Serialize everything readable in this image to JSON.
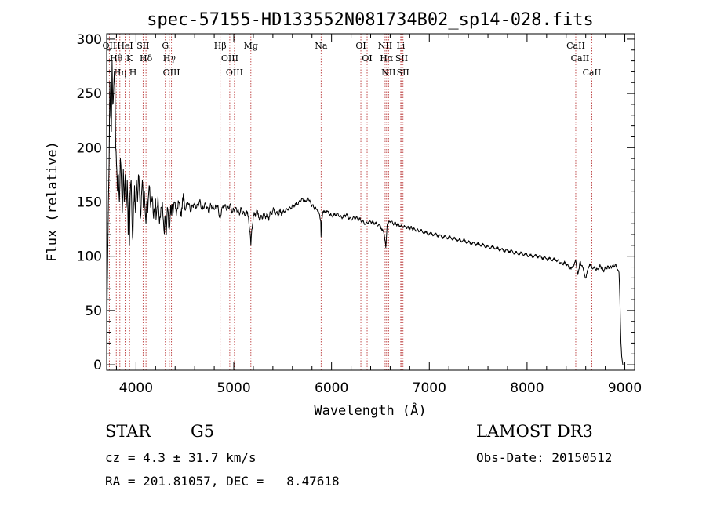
{
  "chart_data": {
    "type": "line",
    "title": "spec-57155-HD133552N081734B02_sp14-028.fits",
    "xlabel": "Wavelength (Å)",
    "ylabel": "Flux (relative)",
    "xlim": [
      3700,
      9100
    ],
    "ylim": [
      -5,
      305
    ],
    "x_ticks": [
      4000,
      5000,
      6000,
      7000,
      8000,
      9000
    ],
    "x_tick_labels": [
      "4000",
      "5000",
      "6000",
      "7000",
      "8000",
      "9000"
    ],
    "y_ticks": [
      0,
      50,
      100,
      150,
      200,
      250,
      300
    ],
    "y_tick_labels": [
      "0",
      "50",
      "100",
      "150",
      "200",
      "250",
      "300"
    ],
    "grid": false,
    "series": [
      {
        "name": "flux",
        "x": [
          3700,
          3705,
          3712,
          3718,
          3725,
          3732,
          3740,
          3748,
          3755,
          3762,
          3770,
          3778,
          3785,
          3792,
          3800,
          3810,
          3820,
          3830,
          3840,
          3850,
          3860,
          3870,
          3880,
          3890,
          3900,
          3910,
          3920,
          3930,
          3933,
          3940,
          3950,
          3960,
          3968,
          3975,
          3985,
          3995,
          4005,
          4015,
          4025,
          4035,
          4045,
          4055,
          4065,
          4075,
          4085,
          4095,
          4102,
          4110,
          4120,
          4135,
          4150,
          4165,
          4180,
          4195,
          4210,
          4225,
          4240,
          4255,
          4270,
          4285,
          4300,
          4310,
          4320,
          4330,
          4340,
          4350,
          4365,
          4380,
          4400,
          4420,
          4440,
          4460,
          4480,
          4500,
          4530,
          4560,
          4590,
          4620,
          4650,
          4680,
          4710,
          4740,
          4770,
          4800,
          4830,
          4861,
          4880,
          4900,
          4930,
          4960,
          4990,
          5020,
          5050,
          5080,
          5110,
          5140,
          5167,
          5175,
          5184,
          5200,
          5230,
          5270,
          5300,
          5350,
          5400,
          5450,
          5500,
          5550,
          5600,
          5650,
          5700,
          5730,
          5760,
          5790,
          5820,
          5850,
          5870,
          5890,
          5893,
          5896,
          5910,
          5950,
          6000,
          6050,
          6100,
          6150,
          6200,
          6250,
          6300,
          6350,
          6400,
          6450,
          6500,
          6540,
          6555,
          6563,
          6570,
          6600,
          6650,
          6700,
          6750,
          6800,
          6850,
          6900,
          7000,
          7100,
          7200,
          7300,
          7400,
          7500,
          7600,
          7700,
          7800,
          7900,
          8000,
          8100,
          8200,
          8300,
          8350,
          8400,
          8450,
          8498,
          8520,
          8542,
          8560,
          8600,
          8640,
          8662,
          8690,
          8720,
          8750,
          8780,
          8810,
          8840,
          8870,
          8900,
          8925,
          8940,
          8950,
          8960,
          8968,
          8975,
          8980
        ],
        "y": [
          0,
          60,
          110,
          150,
          185,
          260,
          230,
          215,
          280,
          240,
          250,
          270,
          255,
          200,
          185,
          160,
          175,
          150,
          190,
          170,
          140,
          180,
          150,
          175,
          145,
          170,
          120,
          160,
          110,
          155,
          170,
          130,
          115,
          150,
          165,
          140,
          170,
          150,
          175,
          160,
          135,
          155,
          170,
          145,
          160,
          140,
          130,
          150,
          140,
          165,
          145,
          155,
          135,
          148,
          140,
          155,
          130,
          145,
          150,
          125,
          135,
          120,
          145,
          140,
          125,
          138,
          147,
          140,
          150,
          143,
          149,
          141,
          151,
          143,
          150,
          142,
          148,
          145,
          151,
          143,
          149,
          141,
          147,
          143,
          147,
          135,
          145,
          148,
          143,
          147,
          141,
          145,
          140,
          143,
          138,
          141,
          122,
          110,
          125,
          137,
          140,
          134,
          138,
          136,
          142,
          139,
          141,
          143,
          146,
          148,
          153,
          150,
          154,
          148,
          145,
          143,
          140,
          132,
          118,
          130,
          140,
          142,
          137,
          139,
          136,
          138,
          134,
          136,
          133,
          130,
          132,
          130,
          128,
          120,
          108,
          120,
          130,
          132,
          130,
          128,
          127,
          126,
          125,
          123,
          121,
          119,
          117,
          115,
          113,
          111,
          109,
          107,
          105,
          103,
          101,
          100,
          98,
          96,
          94,
          93,
          88,
          96,
          83,
          95,
          91,
          80,
          93,
          90,
          89,
          88,
          91,
          87,
          89,
          90,
          90,
          92,
          88,
          85,
          60,
          20,
          8,
          3,
          0
        ]
      }
    ],
    "annotations": [
      {
        "wl": 3727,
        "label": "OII"
      },
      {
        "wl": 3798,
        "label": "Hθ"
      },
      {
        "wl": 3835,
        "label": "Hη"
      },
      {
        "wl": 3889,
        "label": "HeI"
      },
      {
        "wl": 3934,
        "label": "K"
      },
      {
        "wl": 3969,
        "label": "H"
      },
      {
        "wl": 4072,
        "label": "SII"
      },
      {
        "wl": 4102,
        "label": "Hδ"
      },
      {
        "wl": 4300,
        "label": "G"
      },
      {
        "wl": 4341,
        "label": "Hγ"
      },
      {
        "wl": 4363,
        "label": "OIII"
      },
      {
        "wl": 4861,
        "label": "Hβ"
      },
      {
        "wl": 4959,
        "label": "OIII"
      },
      {
        "wl": 5007,
        "label": "OIII"
      },
      {
        "wl": 5175,
        "label": "Mg"
      },
      {
        "wl": 5893,
        "label": "Na"
      },
      {
        "wl": 6300,
        "label": "OI"
      },
      {
        "wl": 6364,
        "label": "OI"
      },
      {
        "wl": 6548,
        "label": "NII"
      },
      {
        "wl": 6563,
        "label": "Hα"
      },
      {
        "wl": 6583,
        "label": "NII"
      },
      {
        "wl": 6708,
        "label": "Li"
      },
      {
        "wl": 6717,
        "label": "SII"
      },
      {
        "wl": 6731,
        "label": "SII"
      },
      {
        "wl": 8498,
        "label": "CaII"
      },
      {
        "wl": 8542,
        "label": "CaII"
      },
      {
        "wl": 8662,
        "label": "CaII"
      }
    ]
  },
  "info": {
    "object_class": "STAR",
    "subclass": "G5",
    "cz_line": "cz = 4.3 ± 31.7 km/s",
    "radec_line": "RA = 201.81057, DEC =   8.47618",
    "survey": "LAMOST DR3",
    "obs_date": "Obs-Date: 20150512"
  },
  "colors": {
    "line": "#000000",
    "annotation_line": "#b22222",
    "background": "#ffffff"
  }
}
